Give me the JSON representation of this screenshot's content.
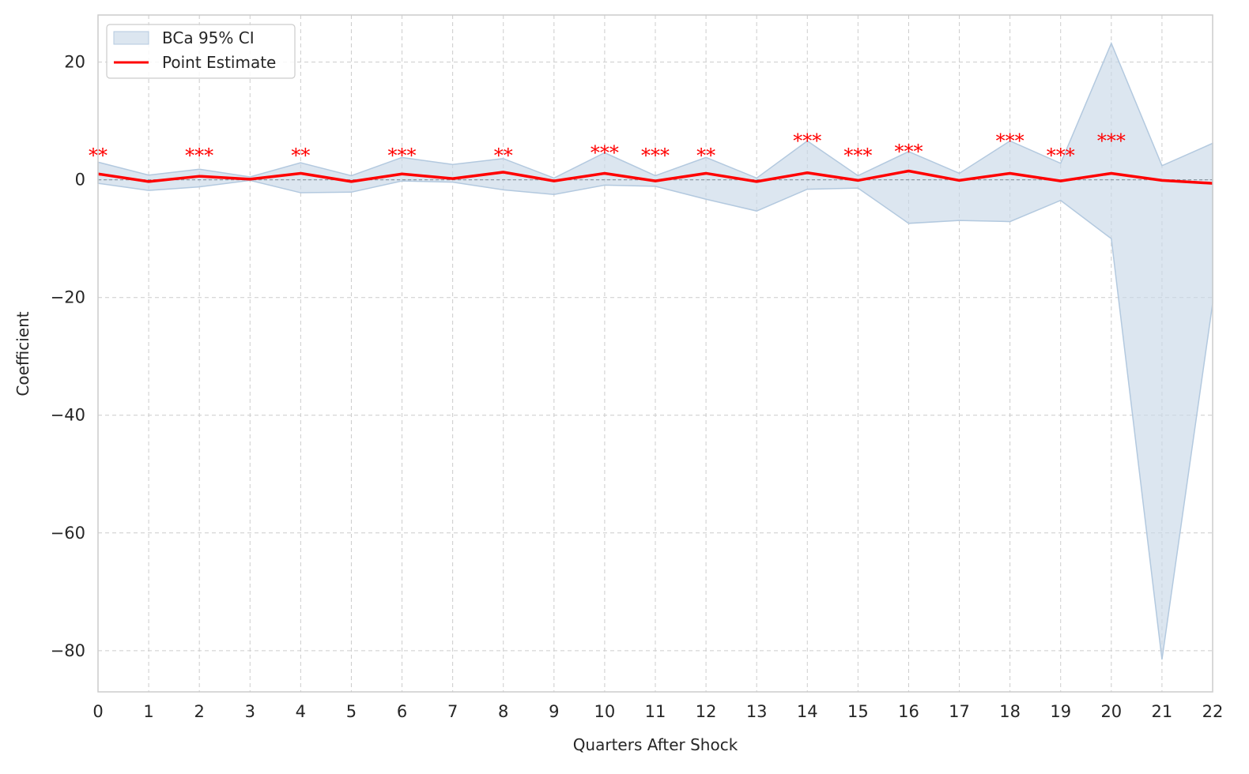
{
  "chart_data": {
    "type": "line",
    "title": "",
    "xlabel": "Quarters After Shock",
    "ylabel": "Coefficient",
    "xlim": [
      0,
      22
    ],
    "ylim": [
      -87,
      28
    ],
    "xticks": [
      0,
      1,
      2,
      3,
      4,
      5,
      6,
      7,
      8,
      9,
      10,
      11,
      12,
      13,
      14,
      15,
      16,
      17,
      18,
      19,
      20,
      21,
      22
    ],
    "yticks": [
      -80,
      -60,
      -40,
      -20,
      0,
      20
    ],
    "ytick_labels": [
      "−80",
      "−60",
      "−40",
      "−20",
      "0",
      "20"
    ],
    "grid": true,
    "legend_position": "top-left",
    "legend": {
      "ci_label": "BCa 95% CI",
      "line_label": "Point Estimate"
    },
    "x": [
      0,
      1,
      2,
      3,
      4,
      5,
      6,
      7,
      8,
      9,
      10,
      11,
      12,
      13,
      14,
      15,
      16,
      17,
      18,
      19,
      20,
      21,
      22
    ],
    "series": [
      {
        "name": "Point Estimate",
        "color": "#ff0000",
        "values": [
          1.0,
          -0.3,
          0.6,
          0.1,
          1.1,
          -0.3,
          1.0,
          0.2,
          1.3,
          -0.2,
          1.1,
          -0.2,
          1.1,
          -0.3,
          1.2,
          -0.1,
          1.5,
          -0.1,
          1.1,
          -0.2,
          1.1,
          -0.1,
          -0.6
        ]
      },
      {
        "name": "BCa 95% CI",
        "color": "#c9d9e8",
        "lower": [
          -0.6,
          -1.8,
          -1.2,
          -0.1,
          -2.2,
          -2.1,
          -0.2,
          -0.4,
          -1.7,
          -2.5,
          -0.9,
          -1.1,
          -3.3,
          -5.3,
          -1.6,
          -1.4,
          -7.4,
          -6.9,
          -7.1,
          -3.5,
          -10.0,
          -81.5,
          -21.0
        ],
        "upper": [
          3.0,
          0.8,
          1.8,
          0.5,
          2.9,
          0.7,
          3.8,
          2.6,
          3.6,
          0.3,
          4.6,
          0.7,
          3.8,
          0.3,
          6.6,
          0.7,
          4.8,
          1.1,
          6.6,
          2.8,
          23.2,
          2.4,
          6.2
        ]
      }
    ],
    "significance": [
      {
        "x": 0,
        "label": "**"
      },
      {
        "x": 2,
        "label": "***"
      },
      {
        "x": 4,
        "label": "**"
      },
      {
        "x": 6,
        "label": "***"
      },
      {
        "x": 8,
        "label": "**"
      },
      {
        "x": 10,
        "label": "***"
      },
      {
        "x": 11,
        "label": "***"
      },
      {
        "x": 12,
        "label": "**"
      },
      {
        "x": 14,
        "label": "***"
      },
      {
        "x": 15,
        "label": "***"
      },
      {
        "x": 16,
        "label": "***"
      },
      {
        "x": 18,
        "label": "***"
      },
      {
        "x": 19,
        "label": "***"
      },
      {
        "x": 20,
        "label": "***"
      }
    ],
    "significance_color": "#ff0000",
    "zero_line": true
  }
}
